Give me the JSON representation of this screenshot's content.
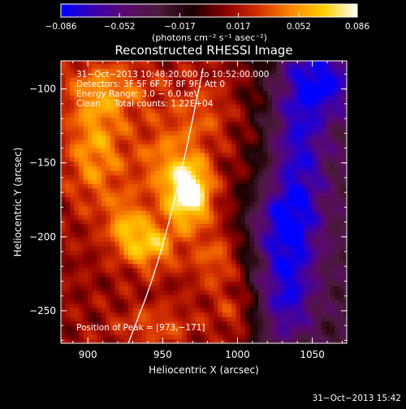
{
  "chart_data": {
    "type": "heatmap",
    "title": "Reconstructed RHESSI Image",
    "xlabel": "Heliocentric X (arcsec)",
    "ylabel": "Heliocentric Y (arcsec)",
    "xlim": [
      882,
      1073
    ],
    "ylim": [
      -272,
      -81
    ],
    "x_ticks": [
      {
        "value": 900,
        "label": "900"
      },
      {
        "value": 950,
        "label": "950"
      },
      {
        "value": 1000,
        "label": "1000"
      },
      {
        "value": 1050,
        "label": "1050"
      }
    ],
    "y_ticks": [
      {
        "value": -100,
        "label": "−100"
      },
      {
        "value": -150,
        "label": "−150"
      },
      {
        "value": -200,
        "label": "−200"
      },
      {
        "value": -250,
        "label": "−250"
      }
    ],
    "colorbar": {
      "range": [
        -0.086,
        0.086
      ],
      "tick_values": [
        -0.086,
        -0.052,
        -0.017,
        0.017,
        0.052,
        0.086
      ],
      "tick_labels": [
        "−0.086",
        "−0.052",
        "−0.017",
        "0.017",
        "0.052",
        "0.086"
      ],
      "unit_label": "(photons cm⁻² s⁻¹ asec⁻²)",
      "colors": [
        "#0000ff",
        "#3a00b0",
        "#5b0a6a",
        "#4a1a3a",
        "#1a0000",
        "#8a0000",
        "#d43000",
        "#ff8800",
        "#ffd000",
        "#ffffff"
      ]
    },
    "annotations": [
      "31−Oct−2013 10:48:20.000 to 10:52:00.000",
      "Detectors: 3F 5F 6F 7F 8F 9F, Att 0",
      "Energy Range: 3.0 − 6.0 keV",
      "Clean     Total counts: 1.22E+04"
    ],
    "peak_label": "Position of Peak = [973,−171]",
    "peak": [
      973,
      -171
    ],
    "sources": [
      {
        "x": 968,
        "y": -170,
        "value": 0.086,
        "sx": 10,
        "sy": 15
      },
      {
        "x": 950,
        "y": -150,
        "value": 0.03,
        "sx": 14,
        "sy": 20
      },
      {
        "x": 942,
        "y": -205,
        "value": 0.05,
        "sx": 12,
        "sy": 12
      },
      {
        "x": 925,
        "y": -192,
        "value": 0.035,
        "sx": 9,
        "sy": 14
      },
      {
        "x": 905,
        "y": -140,
        "value": 0.04,
        "sx": 14,
        "sy": 28
      },
      {
        "x": 915,
        "y": -100,
        "value": 0.028,
        "sx": 22,
        "sy": 14
      },
      {
        "x": 975,
        "y": -118,
        "value": 0.022,
        "sx": 14,
        "sy": 16
      },
      {
        "x": 985,
        "y": -215,
        "value": 0.026,
        "sx": 12,
        "sy": 14
      },
      {
        "x": 945,
        "y": -260,
        "value": 0.022,
        "sx": 18,
        "sy": 10
      },
      {
        "x": 1000,
        "y": -250,
        "value": 0.02,
        "sx": 10,
        "sy": 10
      },
      {
        "x": 1040,
        "y": -140,
        "value": -0.06,
        "sx": 14,
        "sy": 60
      },
      {
        "x": 1030,
        "y": -240,
        "value": -0.055,
        "sx": 14,
        "sy": 28
      },
      {
        "x": 1060,
        "y": -95,
        "value": -0.045,
        "sx": 14,
        "sy": 16
      },
      {
        "x": 1025,
        "y": -190,
        "value": -0.04,
        "sx": 16,
        "sy": 18
      }
    ],
    "limb_arc": [
      [
        927,
        -272
      ],
      [
        945,
        -225
      ],
      [
        962,
        -160
      ],
      [
        977,
        -86
      ]
    ]
  },
  "footer": {
    "timestamp": "31−Oct−2013 15:42"
  }
}
